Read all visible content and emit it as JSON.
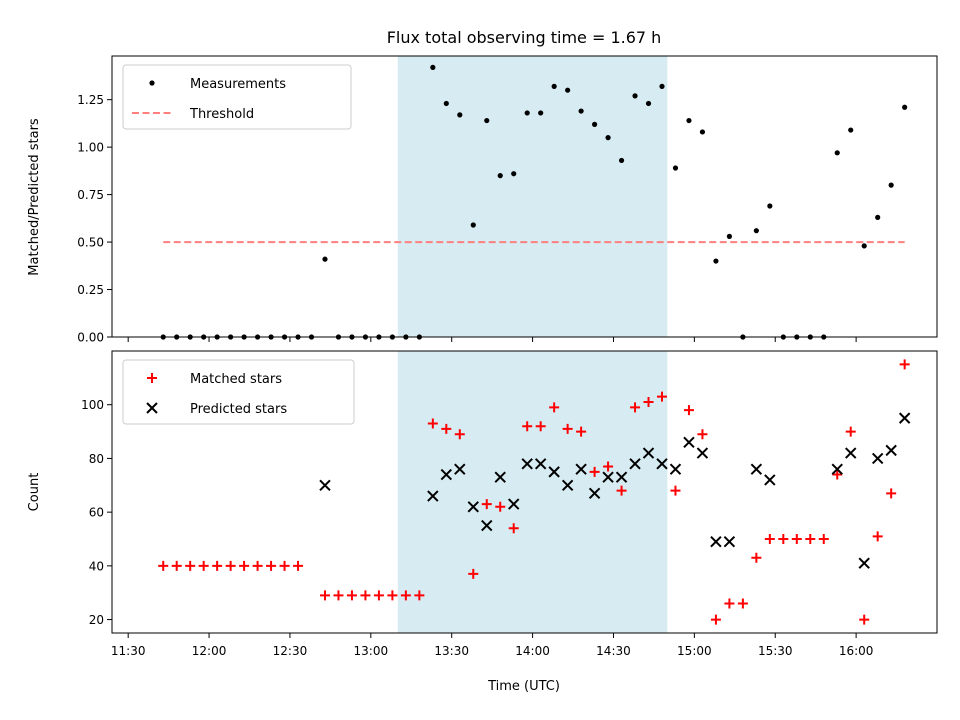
{
  "figure": {
    "title": "Flux total observing time = 1.67 h",
    "xlabel": "Time (UTC)"
  },
  "chart_data": [
    {
      "type": "scatter",
      "ylabel": "Matched/Predicted stars",
      "xlim": [
        "11:24",
        "16:30"
      ],
      "ylim": [
        0,
        1.48
      ],
      "grid": false,
      "legend": "top-left",
      "shaded_region": {
        "x": [
          "13:10",
          "14:50"
        ],
        "color": "#add8e6"
      },
      "x_ticks": [
        "11:30",
        "12:00",
        "12:30",
        "13:00",
        "13:30",
        "14:00",
        "14:30",
        "15:00",
        "15:30",
        "16:00"
      ],
      "y_ticks": [
        "0.00",
        "0.25",
        "0.50",
        "0.75",
        "1.00",
        "1.25"
      ],
      "series": [
        {
          "name": "Measurements",
          "marker": "dot",
          "color": "#000000",
          "points": [
            [
              "11:43",
              0.0
            ],
            [
              "11:48",
              0.0
            ],
            [
              "11:53",
              0.0
            ],
            [
              "11:58",
              0.0
            ],
            [
              "12:03",
              0.0
            ],
            [
              "12:08",
              0.0
            ],
            [
              "12:13",
              0.0
            ],
            [
              "12:18",
              0.0
            ],
            [
              "12:23",
              0.0
            ],
            [
              "12:28",
              0.0
            ],
            [
              "12:33",
              0.0
            ],
            [
              "12:38",
              0.0
            ],
            [
              "12:43",
              0.41
            ],
            [
              "12:48",
              0.0
            ],
            [
              "12:53",
              0.0
            ],
            [
              "12:58",
              0.0
            ],
            [
              "13:03",
              0.0
            ],
            [
              "13:08",
              0.0
            ],
            [
              "13:13",
              0.0
            ],
            [
              "13:18",
              0.0
            ],
            [
              "13:23",
              1.42
            ],
            [
              "13:28",
              1.23
            ],
            [
              "13:33",
              1.17
            ],
            [
              "13:38",
              0.59
            ],
            [
              "13:43",
              1.14
            ],
            [
              "13:48",
              0.85
            ],
            [
              "13:53",
              0.86
            ],
            [
              "13:58",
              1.18
            ],
            [
              "14:03",
              1.18
            ],
            [
              "14:08",
              1.32
            ],
            [
              "14:13",
              1.3
            ],
            [
              "14:18",
              1.19
            ],
            [
              "14:23",
              1.12
            ],
            [
              "14:28",
              1.05
            ],
            [
              "14:33",
              0.93
            ],
            [
              "14:38",
              1.27
            ],
            [
              "14:43",
              1.23
            ],
            [
              "14:48",
              1.32
            ],
            [
              "14:53",
              0.89
            ],
            [
              "14:58",
              1.14
            ],
            [
              "15:03",
              1.08
            ],
            [
              "15:08",
              0.4
            ],
            [
              "15:13",
              0.53
            ],
            [
              "15:18",
              0.0
            ],
            [
              "15:23",
              0.56
            ],
            [
              "15:28",
              0.69
            ],
            [
              "15:33",
              0.0
            ],
            [
              "15:38",
              0.0
            ],
            [
              "15:43",
              0.0
            ],
            [
              "15:48",
              0.0
            ],
            [
              "15:53",
              0.97
            ],
            [
              "15:58",
              1.09
            ],
            [
              "16:03",
              0.48
            ],
            [
              "16:08",
              0.63
            ],
            [
              "16:13",
              0.8
            ],
            [
              "16:18",
              1.21
            ]
          ]
        },
        {
          "name": "Threshold",
          "style": "dashed",
          "color": "#ff7f7f",
          "points": [
            [
              "11:43",
              0.5
            ],
            [
              "16:18",
              0.5
            ]
          ]
        }
      ]
    },
    {
      "type": "scatter",
      "ylabel": "Count",
      "xlim": [
        "11:24",
        "16:30"
      ],
      "ylim": [
        15,
        120
      ],
      "grid": false,
      "legend": "top-left",
      "shaded_region": {
        "x": [
          "13:10",
          "14:50"
        ],
        "color": "#add8e6"
      },
      "x_ticks": [
        "11:30",
        "12:00",
        "12:30",
        "13:00",
        "13:30",
        "14:00",
        "14:30",
        "15:00",
        "15:30",
        "16:00"
      ],
      "y_ticks": [
        "20",
        "40",
        "60",
        "80",
        "100"
      ],
      "series": [
        {
          "name": "Matched stars",
          "marker": "plus",
          "color": "#ff0000",
          "points": [
            [
              "11:43",
              40
            ],
            [
              "11:48",
              40
            ],
            [
              "11:53",
              40
            ],
            [
              "11:58",
              40
            ],
            [
              "12:03",
              40
            ],
            [
              "12:08",
              40
            ],
            [
              "12:13",
              40
            ],
            [
              "12:18",
              40
            ],
            [
              "12:23",
              40
            ],
            [
              "12:28",
              40
            ],
            [
              "12:33",
              40
            ],
            [
              "12:43",
              29
            ],
            [
              "12:48",
              29
            ],
            [
              "12:53",
              29
            ],
            [
              "12:58",
              29
            ],
            [
              "13:03",
              29
            ],
            [
              "13:08",
              29
            ],
            [
              "13:13",
              29
            ],
            [
              "13:18",
              29
            ],
            [
              "13:23",
              93
            ],
            [
              "13:28",
              91
            ],
            [
              "13:33",
              89
            ],
            [
              "13:38",
              37
            ],
            [
              "13:43",
              63
            ],
            [
              "13:48",
              62
            ],
            [
              "13:53",
              54
            ],
            [
              "13:58",
              92
            ],
            [
              "14:03",
              92
            ],
            [
              "14:08",
              99
            ],
            [
              "14:13",
              91
            ],
            [
              "14:18",
              90
            ],
            [
              "14:23",
              75
            ],
            [
              "14:28",
              77
            ],
            [
              "14:33",
              68
            ],
            [
              "14:38",
              99
            ],
            [
              "14:43",
              101
            ],
            [
              "14:48",
              103
            ],
            [
              "14:53",
              68
            ],
            [
              "14:58",
              98
            ],
            [
              "15:03",
              89
            ],
            [
              "15:08",
              20
            ],
            [
              "15:13",
              26
            ],
            [
              "15:18",
              26
            ],
            [
              "15:23",
              43
            ],
            [
              "15:28",
              50
            ],
            [
              "15:33",
              50
            ],
            [
              "15:38",
              50
            ],
            [
              "15:43",
              50
            ],
            [
              "15:48",
              50
            ],
            [
              "15:53",
              74
            ],
            [
              "15:58",
              90
            ],
            [
              "16:03",
              20
            ],
            [
              "16:08",
              51
            ],
            [
              "16:13",
              67
            ],
            [
              "16:18",
              115
            ]
          ]
        },
        {
          "name": "Predicted stars",
          "marker": "x",
          "color": "#000000",
          "points": [
            [
              "12:43",
              70
            ],
            [
              "13:23",
              66
            ],
            [
              "13:28",
              74
            ],
            [
              "13:33",
              76
            ],
            [
              "13:38",
              62
            ],
            [
              "13:43",
              55
            ],
            [
              "13:48",
              73
            ],
            [
              "13:53",
              63
            ],
            [
              "13:58",
              78
            ],
            [
              "14:03",
              78
            ],
            [
              "14:08",
              75
            ],
            [
              "14:13",
              70
            ],
            [
              "14:18",
              76
            ],
            [
              "14:23",
              67
            ],
            [
              "14:28",
              73
            ],
            [
              "14:33",
              73
            ],
            [
              "14:38",
              78
            ],
            [
              "14:43",
              82
            ],
            [
              "14:48",
              78
            ],
            [
              "14:53",
              76
            ],
            [
              "14:58",
              86
            ],
            [
              "15:03",
              82
            ],
            [
              "15:08",
              49
            ],
            [
              "15:13",
              49
            ],
            [
              "15:23",
              76
            ],
            [
              "15:28",
              72
            ],
            [
              "15:53",
              76
            ],
            [
              "15:58",
              82
            ],
            [
              "16:03",
              41
            ],
            [
              "16:08",
              80
            ],
            [
              "16:13",
              83
            ],
            [
              "16:18",
              95
            ]
          ]
        }
      ]
    }
  ]
}
